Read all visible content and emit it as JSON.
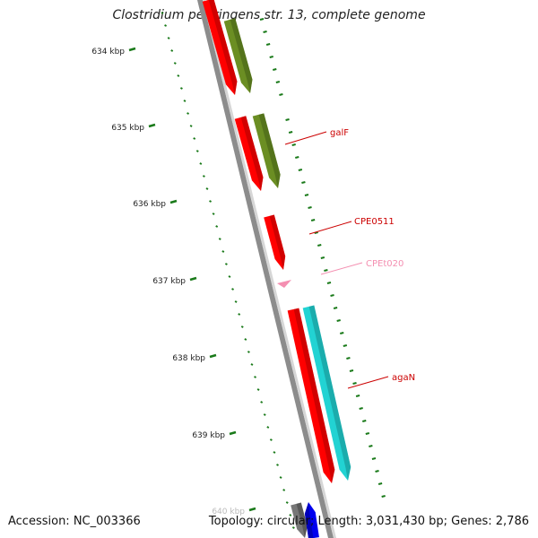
{
  "title": "Clostridium perfringens str. 13, complete genome",
  "accession": "Accession: NC_003366",
  "topology_summary": "Topology: circular; Length: 3,031,430 bp; Genes: 2,786",
  "ruler": {
    "tick_color": "#1a7a1a",
    "labels": [
      "634 kbp",
      "635 kbp",
      "636 kbp",
      "637 kbp",
      "638 kbp",
      "639 kbp",
      "640 kbp"
    ]
  },
  "colors": {
    "backbone": "#8c8c8c",
    "cds": "#ff0000",
    "olive": "#6b8e23",
    "cyan": "#22d3d3",
    "trna": "#f48fb1",
    "grey_feature": "#777777",
    "blue_feature": "#0000ee",
    "label_red": "#cc0000",
    "label_pink": "#f48fb1"
  },
  "features": [
    {
      "name": "galF",
      "color_key": "label_red"
    },
    {
      "name": "CPE0511",
      "color_key": "label_red"
    },
    {
      "name": "CPEt020",
      "color_key": "label_pink"
    },
    {
      "name": "agaN",
      "color_key": "label_red"
    }
  ]
}
